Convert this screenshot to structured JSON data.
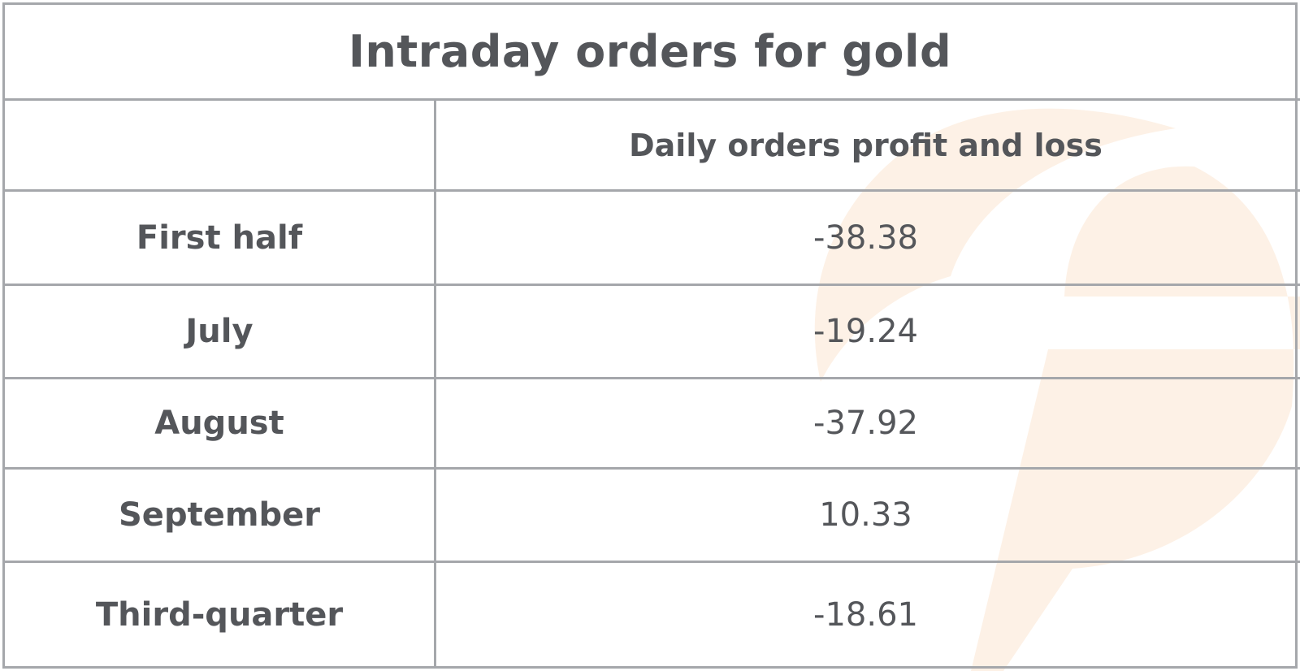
{
  "colors": {
    "text": "#54565a",
    "grid": "#a5a7ab",
    "watermark": "#fdf1e6"
  },
  "chart_data": {
    "type": "table",
    "title": "Intraday orders for gold",
    "columns": [
      "",
      "Daily orders profit and loss"
    ],
    "rows": [
      {
        "period": "First half",
        "value": "-38.38"
      },
      {
        "period": "July",
        "value": "-19.24"
      },
      {
        "period": "August",
        "value": "-37.92"
      },
      {
        "period": "September",
        "value": "10.33"
      },
      {
        "period": "Third-quarter",
        "value": "-18.61"
      }
    ]
  }
}
